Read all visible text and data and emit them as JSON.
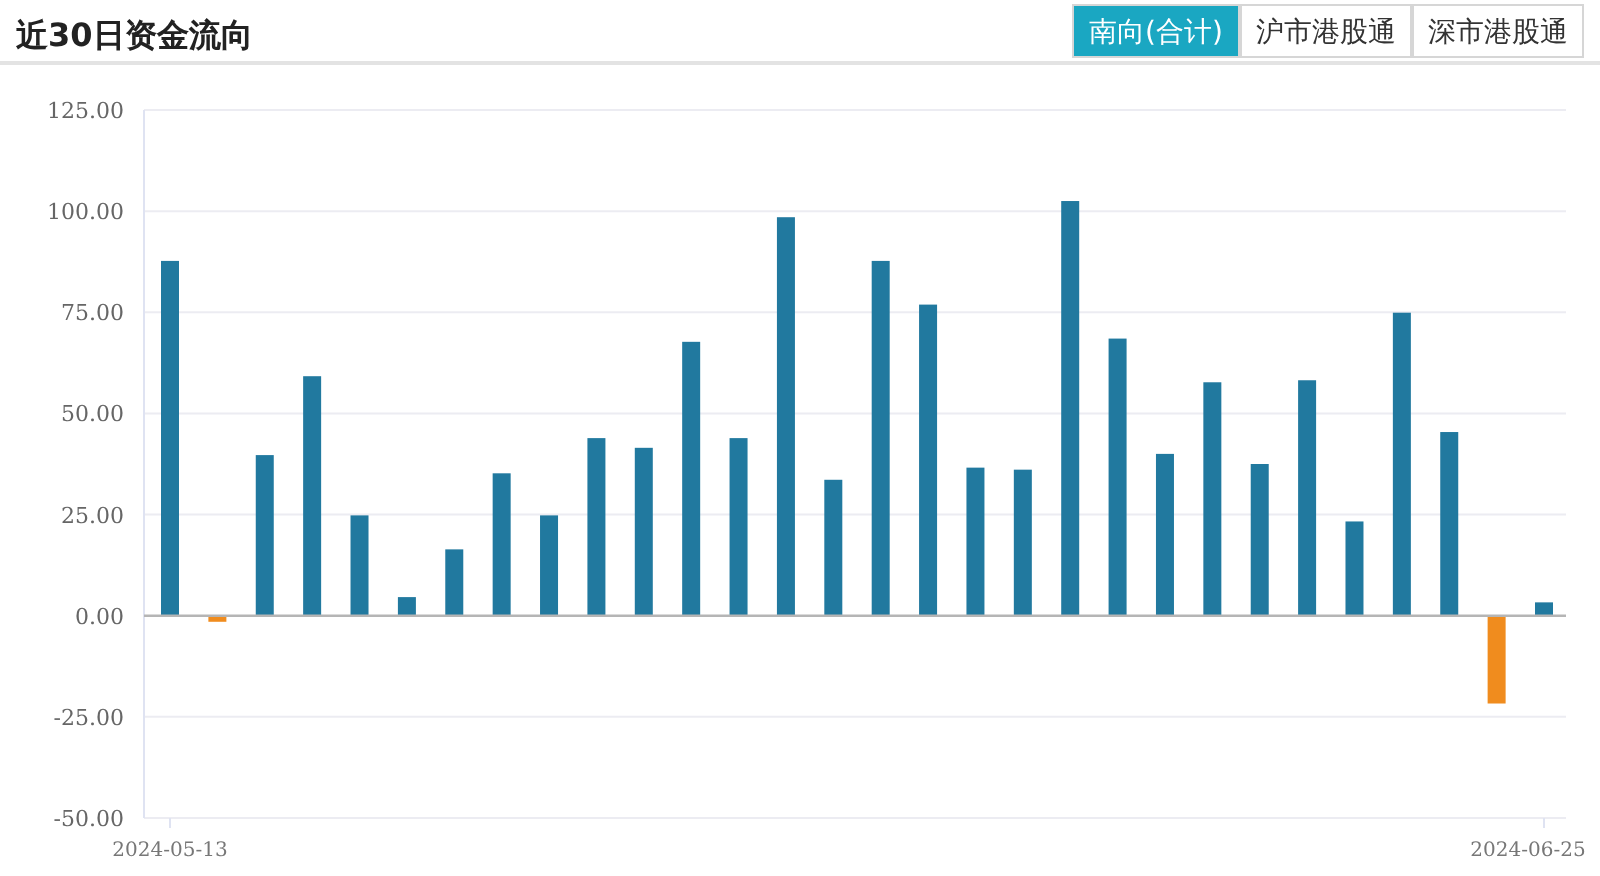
{
  "chart_data": {
    "type": "bar",
    "title": "近30日资金流向",
    "categories": [
      "2024-05-13",
      null,
      null,
      null,
      null,
      null,
      null,
      null,
      null,
      null,
      null,
      null,
      null,
      null,
      null,
      null,
      null,
      null,
      null,
      null,
      null,
      null,
      null,
      null,
      null,
      null,
      null,
      null,
      null,
      "2024-06-25"
    ],
    "values": [
      87.7,
      -1.5,
      39.7,
      59.2,
      24.8,
      4.6,
      16.4,
      35.2,
      24.8,
      43.9,
      41.5,
      67.7,
      43.9,
      98.5,
      33.6,
      87.7,
      76.9,
      36.6,
      36.1,
      102.5,
      68.5,
      40.0,
      57.7,
      37.5,
      58.2,
      23.3,
      74.9,
      45.4,
      -21.7,
      3.3
    ],
    "colors": [
      "#21799f",
      "#f08c1e",
      "#21799f",
      "#21799f",
      "#21799f",
      "#21799f",
      "#21799f",
      "#21799f",
      "#21799f",
      "#21799f",
      "#21799f",
      "#21799f",
      "#21799f",
      "#21799f",
      "#21799f",
      "#21799f",
      "#21799f",
      "#21799f",
      "#21799f",
      "#21799f",
      "#21799f",
      "#21799f",
      "#21799f",
      "#21799f",
      "#21799f",
      "#21799f",
      "#21799f",
      "#21799f",
      "#f08c1e",
      "#21799f"
    ],
    "ylim": [
      -50,
      125
    ],
    "yticks": [
      {
        "value": -50,
        "label": "-50.00"
      },
      {
        "value": -25,
        "label": "-25.00"
      },
      {
        "value": 0,
        "label": "0.00"
      },
      {
        "value": 25,
        "label": "25.00"
      },
      {
        "value": 50,
        "label": "50.00"
      },
      {
        "value": 75,
        "label": "75.00"
      },
      {
        "value": 100,
        "label": "100.00"
      },
      {
        "value": 125,
        "label": "125.00"
      }
    ],
    "grid": "y",
    "annotations": [
      "南向(合计)",
      "沪市港股通",
      "深市港股通"
    ]
  }
}
